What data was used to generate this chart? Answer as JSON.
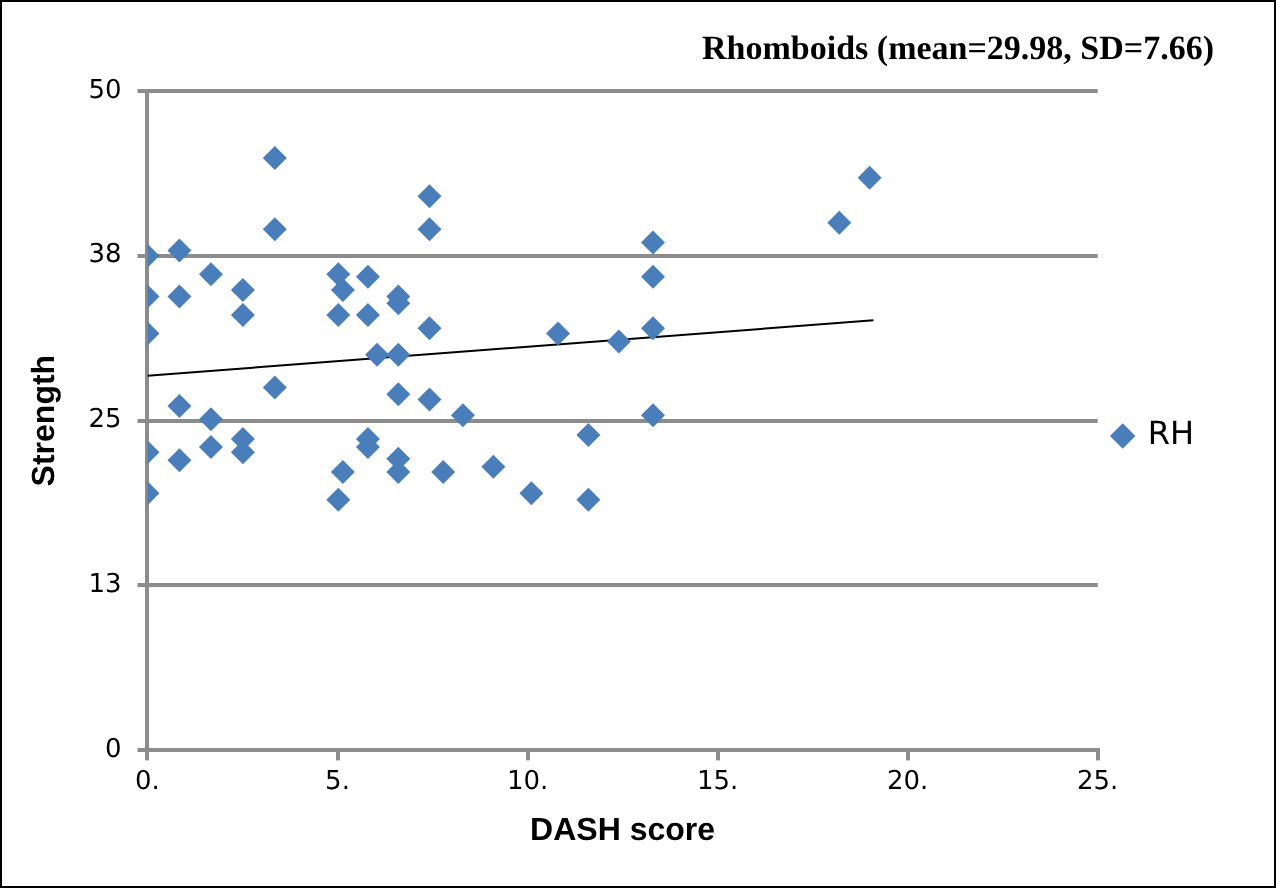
{
  "chart_data": {
    "type": "scatter",
    "title": "Rhomboids (mean=29.98, SD=7.66)",
    "xlabel": "DASH score",
    "ylabel": "Strength",
    "xlim": [
      0,
      25
    ],
    "xticks": [
      {
        "value": 0,
        "label": "0."
      },
      {
        "value": 5,
        "label": "5."
      },
      {
        "value": 10,
        "label": "10."
      },
      {
        "value": 15,
        "label": "15."
      },
      {
        "value": 20,
        "label": "20."
      },
      {
        "value": 25,
        "label": "25."
      }
    ],
    "ylim": [
      0,
      50
    ],
    "yticks": [
      0,
      {
        "value": 12.5,
        "label": "13"
      },
      25,
      {
        "value": 37.5,
        "label": "38"
      },
      50
    ],
    "grid": "y",
    "legend": "right",
    "marker": "diamond",
    "series": [
      {
        "name": "RH",
        "color": "#4a7ebb",
        "x": [
          0,
          0,
          0,
          0,
          0,
          0.84,
          0.84,
          0.84,
          0.84,
          1.67,
          1.67,
          1.67,
          2.51,
          2.51,
          2.51,
          2.51,
          3.35,
          3.35,
          3.35,
          5.02,
          5.14,
          5.02,
          5.14,
          5.02,
          5.8,
          5.8,
          6.04,
          5.8,
          5.8,
          6.6,
          6.6,
          6.6,
          6.6,
          6.6,
          6.6,
          7.42,
          7.42,
          7.42,
          7.42,
          7.78,
          8.3,
          9.1,
          10.1,
          10.8,
          11.6,
          11.6,
          12.4,
          13.3,
          13.3,
          13.3,
          13.3,
          18.2,
          19.0
        ],
        "values": [
          37.5,
          34.4,
          31.6,
          22.6,
          19.5,
          37.9,
          34.4,
          26.1,
          22.0,
          36.1,
          25.1,
          23.0,
          34.9,
          33.0,
          23.6,
          22.6,
          44.9,
          39.5,
          27.5,
          36.1,
          34.9,
          33.0,
          21.1,
          19.0,
          35.9,
          33.0,
          30.0,
          23.6,
          23.0,
          34.4,
          33.9,
          30.0,
          27.0,
          22.1,
          21.1,
          42.0,
          39.5,
          32.0,
          26.6,
          21.1,
          25.4,
          21.5,
          19.5,
          31.6,
          23.9,
          19.0,
          31.0,
          38.5,
          35.9,
          32.0,
          25.4,
          40.0,
          43.4
        ]
      },
      {
        "type": "line",
        "color": "#000000",
        "marker": "none",
        "x": [
          0,
          19.1
        ],
        "values": [
          28.4,
          32.6
        ]
      }
    ]
  }
}
